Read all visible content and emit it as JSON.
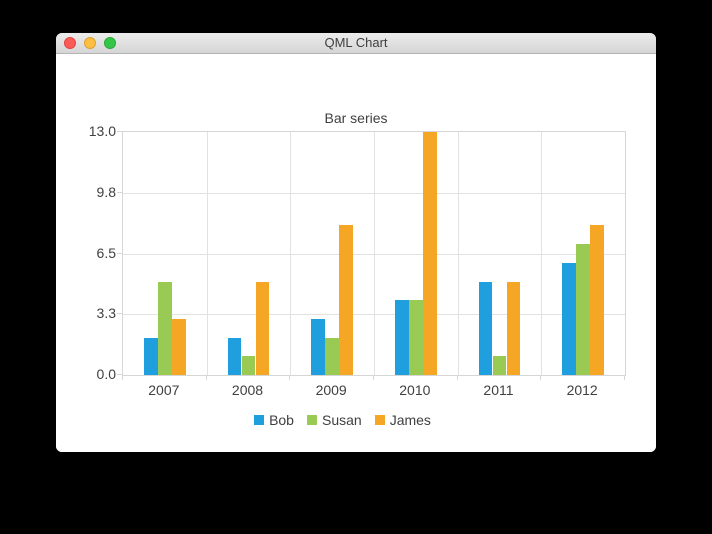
{
  "window": {
    "title": "QML Chart",
    "buttons": {
      "close_color": "#fc5b57",
      "minimize_color": "#fdbe41",
      "zoom_color": "#33c748"
    }
  },
  "chart_data": {
    "type": "bar",
    "title": "Bar series",
    "categories": [
      "2007",
      "2008",
      "2009",
      "2010",
      "2011",
      "2012"
    ],
    "series": [
      {
        "name": "Bob",
        "color": "#209fdf",
        "values": [
          2,
          2,
          3,
          4,
          5,
          6
        ]
      },
      {
        "name": "Susan",
        "color": "#99ca53",
        "values": [
          5,
          1,
          2,
          4,
          1,
          7
        ]
      },
      {
        "name": "James",
        "color": "#f6a625",
        "values": [
          3,
          5,
          8,
          13,
          5,
          8
        ]
      }
    ],
    "y_ticks": [
      "13.0",
      "9.8",
      "6.5",
      "3.3",
      "0.0"
    ],
    "ylim": [
      0,
      13
    ],
    "grid": true,
    "legend_position": "bottom",
    "grid_color": "#e2e2e2",
    "axis_color": "#d6d6d6",
    "text_color": "#404040"
  }
}
